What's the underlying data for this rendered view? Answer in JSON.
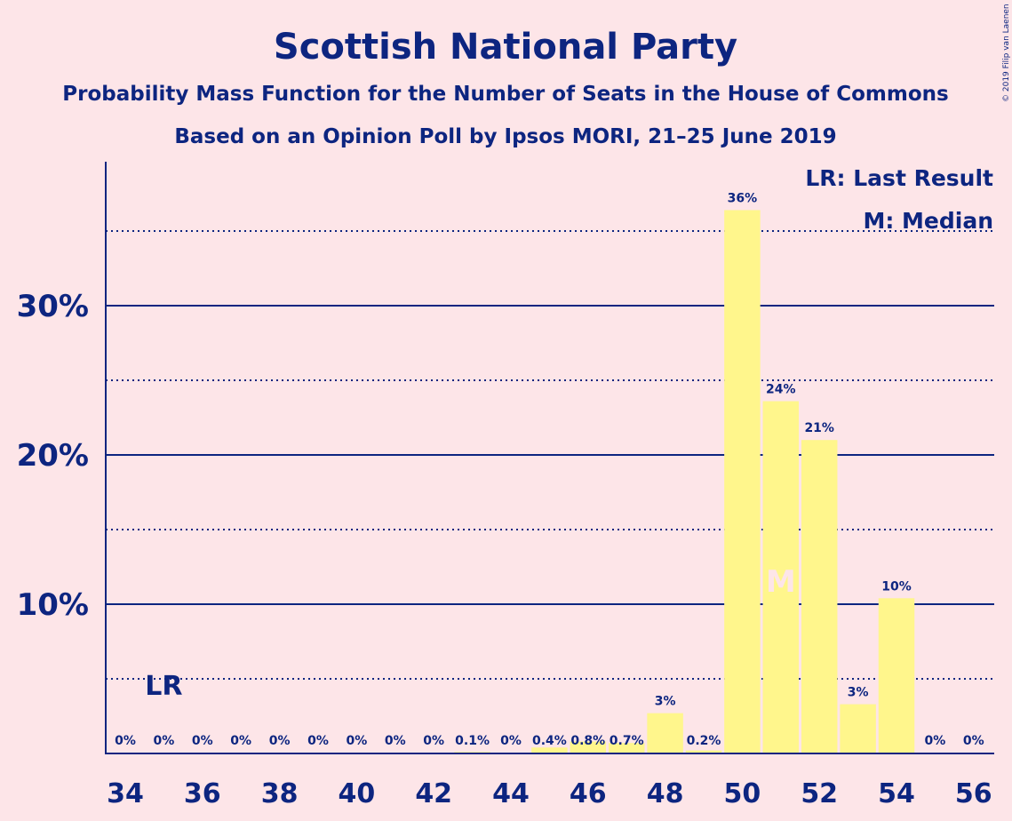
{
  "chart_data": {
    "type": "bar",
    "title": "Scottish National Party",
    "subtitle": "Probability Mass Function for the Number of Seats in the House of Commons",
    "subtitle2": "Based on an Opinion Poll by Ipsos MORI, 21–25 June 2019",
    "copyright": "© 2019 Filip van Laenen",
    "legend": [
      "LR: Last Result",
      "M: Median"
    ],
    "legend_position": "top-right",
    "x": [
      34,
      35,
      36,
      37,
      38,
      39,
      40,
      41,
      42,
      43,
      44,
      45,
      46,
      47,
      48,
      49,
      50,
      51,
      52,
      53,
      54,
      55,
      56
    ],
    "values": [
      0,
      0,
      0,
      0,
      0,
      0,
      0,
      0,
      0,
      0.1,
      0,
      0.4,
      0.8,
      0.7,
      2.7,
      0.2,
      36.4,
      23.6,
      21.0,
      3.3,
      10.4,
      0,
      0
    ],
    "labels": [
      "0%",
      "0%",
      "0%",
      "0%",
      "0%",
      "0%",
      "0%",
      "0%",
      "0%",
      "0.1%",
      "0%",
      "0.4%",
      "0.8%",
      "0.7%",
      "3%",
      "0.2%",
      "36%",
      "24%",
      "21%",
      "3%",
      "10%",
      "0%",
      "0%"
    ],
    "xticks": [
      "34",
      "36",
      "38",
      "40",
      "42",
      "44",
      "46",
      "48",
      "50",
      "52",
      "54",
      "56"
    ],
    "yticks": [
      "10%",
      "20%",
      "30%"
    ],
    "ylim": [
      0,
      39.5
    ],
    "last_result": {
      "x": 35,
      "label": "LR"
    },
    "median": {
      "x": 51,
      "label": "M"
    },
    "colors": {
      "bar": "#FFF68C",
      "text": "#0D2580",
      "background": "#FDE5E8"
    }
  }
}
